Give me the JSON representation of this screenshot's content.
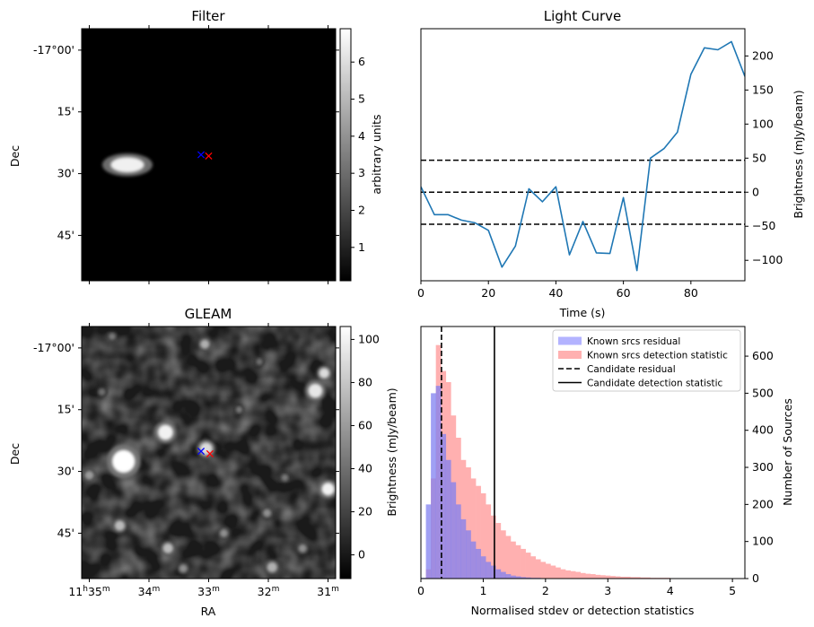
{
  "panels": {
    "filter": {
      "title": "Filter",
      "ylabel": "Dec",
      "dec_ticks": [
        "-17°00'",
        "15'",
        "30'",
        "45'"
      ],
      "colorbar": {
        "label": "arbitrary units",
        "ticks": [
          "1",
          "2",
          "3",
          "4",
          "5",
          "6"
        ]
      }
    },
    "gleam": {
      "title": "GLEAM",
      "ylabel": "Dec",
      "xlabel": "RA",
      "dec_ticks": [
        "-17°00'",
        "15'",
        "30'",
        "45'"
      ],
      "ra_ticks": [
        {
          "h": "11",
          "hs": "h",
          "m": "35",
          "ms": "m"
        },
        {
          "h": "",
          "hs": "",
          "m": "34",
          "ms": "m"
        },
        {
          "h": "",
          "hs": "",
          "m": "33",
          "ms": "m"
        },
        {
          "h": "",
          "hs": "",
          "m": "32",
          "ms": "m"
        },
        {
          "h": "",
          "hs": "",
          "m": "31",
          "ms": "m"
        }
      ],
      "colorbar": {
        "label": "Brightness (mJy/beam)",
        "ticks": [
          "0",
          "20",
          "40",
          "60",
          "80",
          "100"
        ]
      }
    },
    "lightcurve": {
      "title": "Light Curve",
      "xlabel": "Time (s)",
      "ylabel": "Brightness (mJy/beam)",
      "x_ticks": [
        "0",
        "20",
        "40",
        "60",
        "80"
      ],
      "y_ticks": [
        "−100",
        "−50",
        "0",
        "50",
        "100",
        "150",
        "200"
      ]
    },
    "histogram": {
      "xlabel": "Normalised stdev or detection statistics",
      "ylabel": "Number of Sources",
      "x_ticks": [
        "0",
        "1",
        "2",
        "3",
        "4",
        "5"
      ],
      "y_ticks": [
        "0",
        "100",
        "200",
        "300",
        "400",
        "500",
        "600"
      ],
      "legend": [
        {
          "label": "Known srcs residual",
          "kind": "patch",
          "color": "#b3b3ff"
        },
        {
          "label": "Known srcs detection statistic",
          "kind": "patch",
          "color": "#ffb0b0"
        },
        {
          "label": "Candidate residual",
          "kind": "dashed",
          "color": "#000000"
        },
        {
          "label": "Candidate detection statistic",
          "kind": "solid",
          "color": "#000000"
        }
      ]
    }
  },
  "chart_data": [
    {
      "type": "line",
      "panel": "Light Curve",
      "x": [
        0,
        4,
        8,
        12,
        16,
        20,
        24,
        28,
        32,
        36,
        40,
        44,
        48,
        52,
        56,
        60,
        64,
        68,
        72,
        76,
        80,
        84,
        88,
        92,
        96
      ],
      "y": [
        8,
        -33,
        -33,
        -41,
        -45,
        -56,
        -110,
        -79,
        5,
        -14,
        8,
        -92,
        -43,
        -89,
        -90,
        -8,
        -115,
        50,
        64,
        88,
        173,
        212,
        209,
        221,
        170
      ],
      "xlim": [
        0,
        96
      ],
      "ylim": [
        -130,
        240
      ],
      "hlines": [
        -47,
        0,
        47
      ],
      "line_color": "#1f77b4"
    },
    {
      "type": "bar",
      "panel": "Histogram",
      "bin_width": 0.08,
      "xlim": [
        0,
        5.2
      ],
      "ylim": [
        0,
        680
      ],
      "series": [
        {
          "values": [
            0,
            25,
            270,
            630,
            560,
            530,
            440,
            380,
            320,
            300,
            270,
            250,
            230,
            200,
            170,
            150,
            130,
            115,
            100,
            90,
            80,
            70,
            60,
            52,
            45,
            40,
            35,
            30,
            25,
            22,
            20,
            18,
            15,
            13,
            12,
            10,
            9,
            8,
            7,
            6,
            5,
            5,
            4,
            4,
            3,
            3,
            2,
            2,
            2,
            2,
            1,
            1,
            1,
            1,
            1,
            1,
            1,
            1,
            1,
            1,
            1,
            1,
            1,
            1,
            1
          ]
        },
        {
          "values": [
            2,
            200,
            500,
            520,
            390,
            320,
            260,
            200,
            160,
            130,
            100,
            80,
            60,
            45,
            35,
            25,
            18,
            12,
            8,
            6,
            4,
            3,
            2,
            2,
            1,
            1,
            1,
            0,
            0,
            0,
            0,
            0,
            0,
            0,
            0,
            0,
            0,
            0,
            0,
            0,
            0,
            0,
            0,
            0,
            0,
            0,
            0,
            0,
            0,
            0,
            0,
            0,
            0,
            0,
            0,
            0,
            0,
            0,
            0,
            0,
            0,
            0,
            0,
            0,
            0
          ]
        }
      ],
      "vlines": [
        {
          "x": 0.33,
          "style": "dashed"
        },
        {
          "x": 1.18,
          "style": "solid"
        }
      ]
    },
    {
      "type": "heatmap",
      "panel": "Filter",
      "vmin": 0,
      "vmax": 6.9,
      "blobs": [
        {
          "u": 0.18,
          "v": 0.54,
          "r": 0.03,
          "level": 6.5,
          "stretch": 2.2
        }
      ],
      "markers": [
        {
          "u": 0.47,
          "v": 0.5,
          "color": "#0000ff"
        },
        {
          "u": 0.5,
          "v": 0.505,
          "color": "#ff0000"
        }
      ]
    },
    {
      "type": "heatmap",
      "panel": "GLEAM",
      "vmin": -10,
      "vmax": 106,
      "blobs": [
        {
          "u": 0.165,
          "v": 0.535,
          "r": 0.045,
          "level": 106
        },
        {
          "u": 0.33,
          "v": 0.42,
          "r": 0.03,
          "level": 100
        },
        {
          "u": 0.92,
          "v": 0.255,
          "r": 0.028,
          "level": 95
        },
        {
          "u": 0.97,
          "v": 0.645,
          "r": 0.025,
          "level": 100
        },
        {
          "u": 0.955,
          "v": 0.185,
          "r": 0.02,
          "level": 90
        },
        {
          "u": 0.49,
          "v": 0.485,
          "r": 0.025,
          "level": 90
        },
        {
          "u": 0.485,
          "v": 0.07,
          "r": 0.018,
          "level": 70
        },
        {
          "u": 0.15,
          "v": 0.79,
          "r": 0.02,
          "level": 75
        },
        {
          "u": 0.34,
          "v": 0.88,
          "r": 0.02,
          "level": 75
        },
        {
          "u": 0.75,
          "v": 0.955,
          "r": 0.02,
          "level": 70
        },
        {
          "u": 0.03,
          "v": 0.59,
          "r": 0.018,
          "level": 60
        },
        {
          "u": 0.56,
          "v": 0.82,
          "r": 0.016,
          "level": 55
        },
        {
          "u": 0.73,
          "v": 0.74,
          "r": 0.016,
          "level": 55
        },
        {
          "u": 0.87,
          "v": 0.88,
          "r": 0.016,
          "level": 55
        },
        {
          "u": 0.8,
          "v": 0.6,
          "r": 0.014,
          "level": 45
        },
        {
          "u": 0.62,
          "v": 0.33,
          "r": 0.013,
          "level": 45
        },
        {
          "u": 0.4,
          "v": 0.96,
          "r": 0.016,
          "level": 55
        },
        {
          "u": 0.12,
          "v": 0.04,
          "r": 0.014,
          "level": 45
        },
        {
          "u": 0.08,
          "v": 0.26,
          "r": 0.014,
          "level": 40
        },
        {
          "u": 0.7,
          "v": 0.14,
          "r": 0.013,
          "level": 40
        }
      ],
      "markers": [
        {
          "u": 0.47,
          "v": 0.495,
          "color": "#0000ff"
        },
        {
          "u": 0.505,
          "v": 0.505,
          "color": "#ff0000"
        }
      ]
    }
  ]
}
